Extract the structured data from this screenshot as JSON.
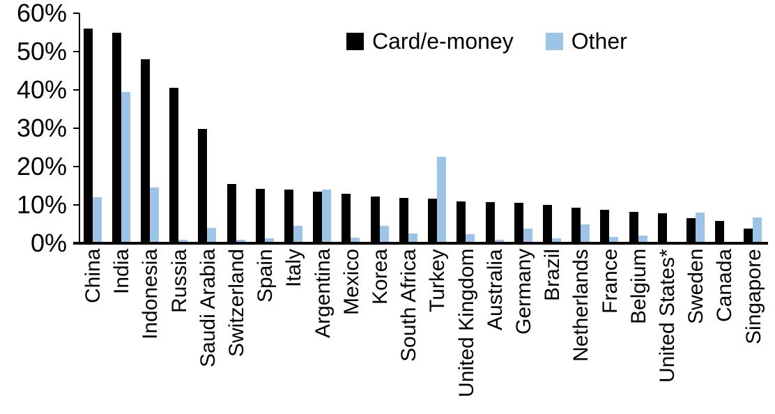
{
  "chart_data": {
    "type": "bar",
    "title": "",
    "xlabel": "",
    "ylabel": "",
    "ylim": [
      0,
      60
    ],
    "grid": false,
    "legend_position": "top-center",
    "yticks": [
      {
        "value": 0,
        "label": "0%"
      },
      {
        "value": 10,
        "label": "10%"
      },
      {
        "value": 20,
        "label": "20%"
      },
      {
        "value": 30,
        "label": "30%"
      },
      {
        "value": 40,
        "label": "40%"
      },
      {
        "value": 50,
        "label": "50%"
      },
      {
        "value": 60,
        "label": "60%"
      }
    ],
    "categories": [
      "China",
      "India",
      "Indonesia",
      "Russia",
      "Saudi Arabia",
      "Switzerland",
      "Spain",
      "Italy",
      "Argentina",
      "Mexico",
      "Korea",
      "South Africa",
      "Turkey",
      "United Kingdom",
      "Australia",
      "Germany",
      "Brazil",
      "Netherlands",
      "France",
      "Belgium",
      "United States*",
      "Sweden",
      "Canada",
      "Singapore"
    ],
    "series": [
      {
        "name": "Card/e-money",
        "color": "#000000",
        "values": [
          56,
          55,
          48,
          40.5,
          29.8,
          15.5,
          14.2,
          14,
          13.4,
          13,
          12.2,
          11.8,
          11.6,
          11,
          10.7,
          10.5,
          10,
          9.2,
          8.7,
          8.1,
          7.8,
          6.5,
          5.9,
          3.9
        ]
      },
      {
        "name": "Other",
        "color": "#9DC3E6",
        "values": [
          12,
          39.5,
          14.5,
          1,
          4,
          1,
          1.2,
          4.5,
          14,
          1.4,
          4.6,
          2.5,
          22.5,
          2.3,
          1,
          3.9,
          1.2,
          5,
          1.7,
          2,
          0.4,
          8,
          0,
          6.7
        ]
      }
    ]
  }
}
